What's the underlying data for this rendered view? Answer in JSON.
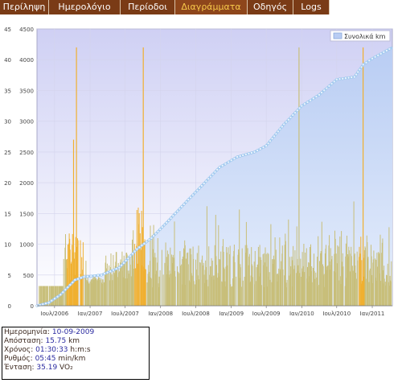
{
  "nav": {
    "tabs": [
      {
        "label": "Περίληψη",
        "active": false
      },
      {
        "label": "Ημερολόγιο",
        "active": false
      },
      {
        "label": "Περίοδοι",
        "active": false
      },
      {
        "label": "Διαγράμματα",
        "active": true
      },
      {
        "label": "Οδηγός",
        "active": false
      },
      {
        "label": "Logs",
        "active": false
      }
    ]
  },
  "chart_data": {
    "type": "bar+area",
    "legend": {
      "label": "Συνολικά km",
      "placement": "top-right"
    },
    "left_axis": {
      "ticks": [
        "0",
        "5",
        "10",
        "15",
        "20",
        "25",
        "30",
        "35",
        "40",
        "45"
      ],
      "range": [
        0,
        45
      ]
    },
    "right_axis": {
      "ticks": [
        "0",
        "500",
        "1000",
        "1500",
        "2000",
        "2500",
        "3000",
        "3500",
        "4000",
        "4500"
      ],
      "range": [
        0,
        4500
      ]
    },
    "x_ticks": [
      "Ιουλ/2006",
      "Ιαν/2007",
      "Ιουλ/2007",
      "Ιαν/2008",
      "Ιουλ/2008",
      "Ιαν/2009",
      "Ιουλ/2009",
      "Ιαν/2010",
      "Ιουλ/2010",
      "Ιαν/2011"
    ],
    "x_range": [
      "2006-04-01",
      "2011-04-15"
    ],
    "cumulative_km": [
      {
        "date": "2006-04-01",
        "km": 0
      },
      {
        "date": "2006-06-01",
        "km": 50
      },
      {
        "date": "2006-08-01",
        "km": 180
      },
      {
        "date": "2006-10-15",
        "km": 420
      },
      {
        "date": "2006-12-01",
        "km": 470
      },
      {
        "date": "2007-03-01",
        "km": 500
      },
      {
        "date": "2007-06-01",
        "km": 620
      },
      {
        "date": "2007-09-01",
        "km": 920
      },
      {
        "date": "2007-11-15",
        "km": 1100
      },
      {
        "date": "2008-02-01",
        "km": 1350
      },
      {
        "date": "2008-05-01",
        "km": 1650
      },
      {
        "date": "2008-08-01",
        "km": 1950
      },
      {
        "date": "2008-11-01",
        "km": 2250
      },
      {
        "date": "2009-02-01",
        "km": 2420
      },
      {
        "date": "2009-05-01",
        "km": 2500
      },
      {
        "date": "2009-07-01",
        "km": 2600
      },
      {
        "date": "2009-10-01",
        "km": 2950
      },
      {
        "date": "2010-01-01",
        "km": 3250
      },
      {
        "date": "2010-04-01",
        "km": 3430
      },
      {
        "date": "2010-07-01",
        "km": 3680
      },
      {
        "date": "2010-10-01",
        "km": 3720
      },
      {
        "date": "2010-11-15",
        "km": 3920
      },
      {
        "date": "2011-01-01",
        "km": 4020
      },
      {
        "date": "2011-04-15",
        "km": 4200
      }
    ],
    "daily_km_bars": {
      "color": "#c8bf7a",
      "highlight_color": "#f0b030",
      "highlight_periods": [
        [
          "2006-09-01",
          "2006-12-01"
        ],
        [
          "2007-08-15",
          "2007-10-15"
        ],
        [
          "2010-10-20",
          "2010-11-20"
        ]
      ],
      "peaks": [
        {
          "date": "2006-10-20",
          "value": 42
        },
        {
          "date": "2006-10-05",
          "value": 27
        },
        {
          "date": "2007-10-01",
          "value": 42
        },
        {
          "date": "2009-12-15",
          "value": 42
        },
        {
          "date": "2010-11-12",
          "value": 42
        }
      ]
    }
  },
  "info": {
    "rows": [
      {
        "label": "Ημερομηνία: ",
        "value": "10-09-2009",
        "unit": ""
      },
      {
        "label": "Απόσταση: ",
        "value": "15.75",
        "unit": " km"
      },
      {
        "label": "Χρόνος: ",
        "value": "01:30:33",
        "unit": " h:m:s"
      },
      {
        "label": "Ρυθμός: ",
        "value": "05:45",
        "unit": " min/km"
      },
      {
        "label": "Ένταση: ",
        "value": "35.19",
        "unit": " VO₂"
      }
    ]
  }
}
